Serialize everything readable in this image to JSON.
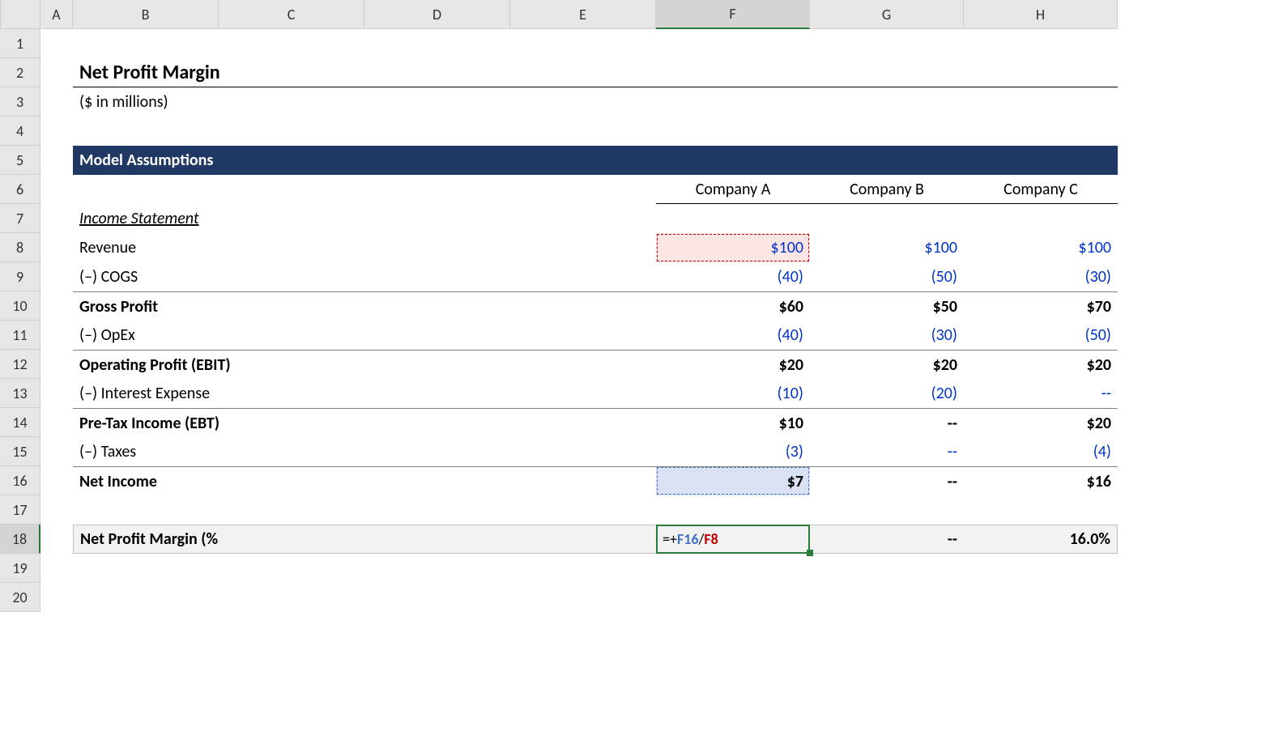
{
  "columns": [
    "A",
    "B",
    "C",
    "D",
    "E",
    "F",
    "G",
    "H"
  ],
  "row_count": 20,
  "active_column_index": 6,
  "active_row_index": 18,
  "title": "Net Profit Margin",
  "subtitle": "($ in millions)",
  "section_header": "Model Assumptions",
  "companies": [
    "Company A",
    "Company B",
    "Company C"
  ],
  "income_statement_label": "Income Statement",
  "rows": {
    "revenue": {
      "label": "Revenue",
      "bold": false,
      "values": [
        "$100",
        "$100",
        "$100"
      ],
      "value_class": "blue-text"
    },
    "cogs": {
      "label": "(–) COGS",
      "bold": false,
      "values": [
        "(40)",
        "(50)",
        "(30)"
      ],
      "value_class": "neg"
    },
    "gross": {
      "label": "Gross Profit",
      "bold": true,
      "values": [
        "$60",
        "$50",
        "$70"
      ],
      "value_class": "bold",
      "subtotal": true
    },
    "opex": {
      "label": "(–) OpEx",
      "bold": false,
      "values": [
        "(40)",
        "(30)",
        "(50)"
      ],
      "value_class": "neg"
    },
    "ebit": {
      "label": "Operating Profit (EBIT)",
      "bold": true,
      "values": [
        "$20",
        "$20",
        "$20"
      ],
      "value_class": "bold",
      "subtotal": true
    },
    "intexp": {
      "label": "(–) Interest Expense",
      "bold": false,
      "values": [
        "(10)",
        "(20)",
        "--"
      ],
      "value_class": "neg"
    },
    "ebt": {
      "label": "Pre-Tax Income (EBT)",
      "bold": true,
      "values": [
        "$10",
        "--",
        "$20"
      ],
      "value_class": "bold",
      "subtotal": true
    },
    "taxes": {
      "label": "(–) Taxes",
      "bold": false,
      "values": [
        "(3)",
        "--",
        "(4)"
      ],
      "value_class": "neg"
    },
    "netinc": {
      "label": "Net Income",
      "bold": true,
      "values": [
        "$7",
        "--",
        "$16"
      ],
      "value_class": "bold",
      "subtotal": true
    }
  },
  "npm": {
    "label": "Net Profit Margin (%)",
    "formula_parts": {
      "eq": "=+",
      "ref1": "F16",
      "slash": "/",
      "ref2": "F8"
    },
    "values_g": "--",
    "values_h": "16.0%"
  },
  "colors": {
    "header_bg": "#e6e6e6",
    "section_bg": "#1f3864",
    "section_fg": "#ffffff",
    "blue_text": "#0033cc",
    "highlight_f8_bg": "#fbe4e4",
    "highlight_f8_border": "#c00000",
    "highlight_f16_bg": "#d9e1f2",
    "highlight_f16_border": "#4472c4",
    "active_border": "#2a7a3a",
    "npm_bg": "#f2f2f2"
  },
  "font": {
    "family": "Calibri",
    "size_pt": 15
  }
}
